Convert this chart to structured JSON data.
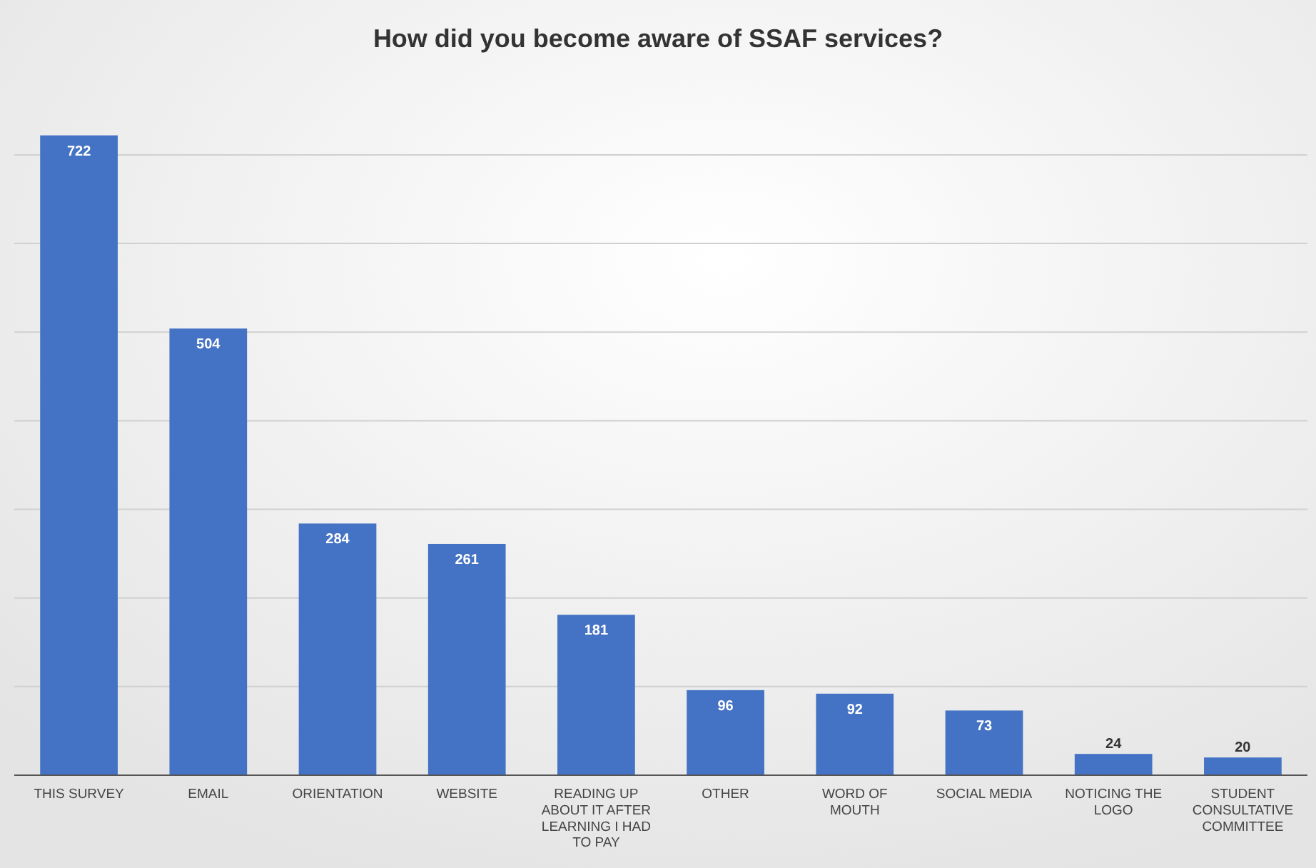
{
  "chart_data": {
    "type": "bar",
    "title": "How did you become aware of SSAF services?",
    "categories": [
      "THIS SURVEY",
      "EMAIL",
      "ORIENTATION",
      "WEBSITE",
      "READING UP ABOUT IT AFTER LEARNING I HAD TO PAY",
      "OTHER",
      "WORD OF MOUTH",
      "SOCIAL MEDIA",
      "NOTICING THE LOGO",
      "STUDENT CONSULTATIVE COMMITTEE"
    ],
    "values": [
      722,
      504,
      284,
      261,
      181,
      96,
      92,
      73,
      24,
      20
    ],
    "color": "#4472c4",
    "data_labels": true,
    "yticks": [
      {
        "value": 0,
        "label": null
      },
      {
        "value": 100,
        "label": null
      },
      {
        "value": 200,
        "label": null
      },
      {
        "value": 300,
        "label": null
      },
      {
        "value": 400,
        "label": null
      },
      {
        "value": 500,
        "label": null
      },
      {
        "value": 600,
        "label": null
      },
      {
        "value": 700,
        "label": null
      }
    ],
    "grid": "y",
    "tick_labels": "x"
  }
}
